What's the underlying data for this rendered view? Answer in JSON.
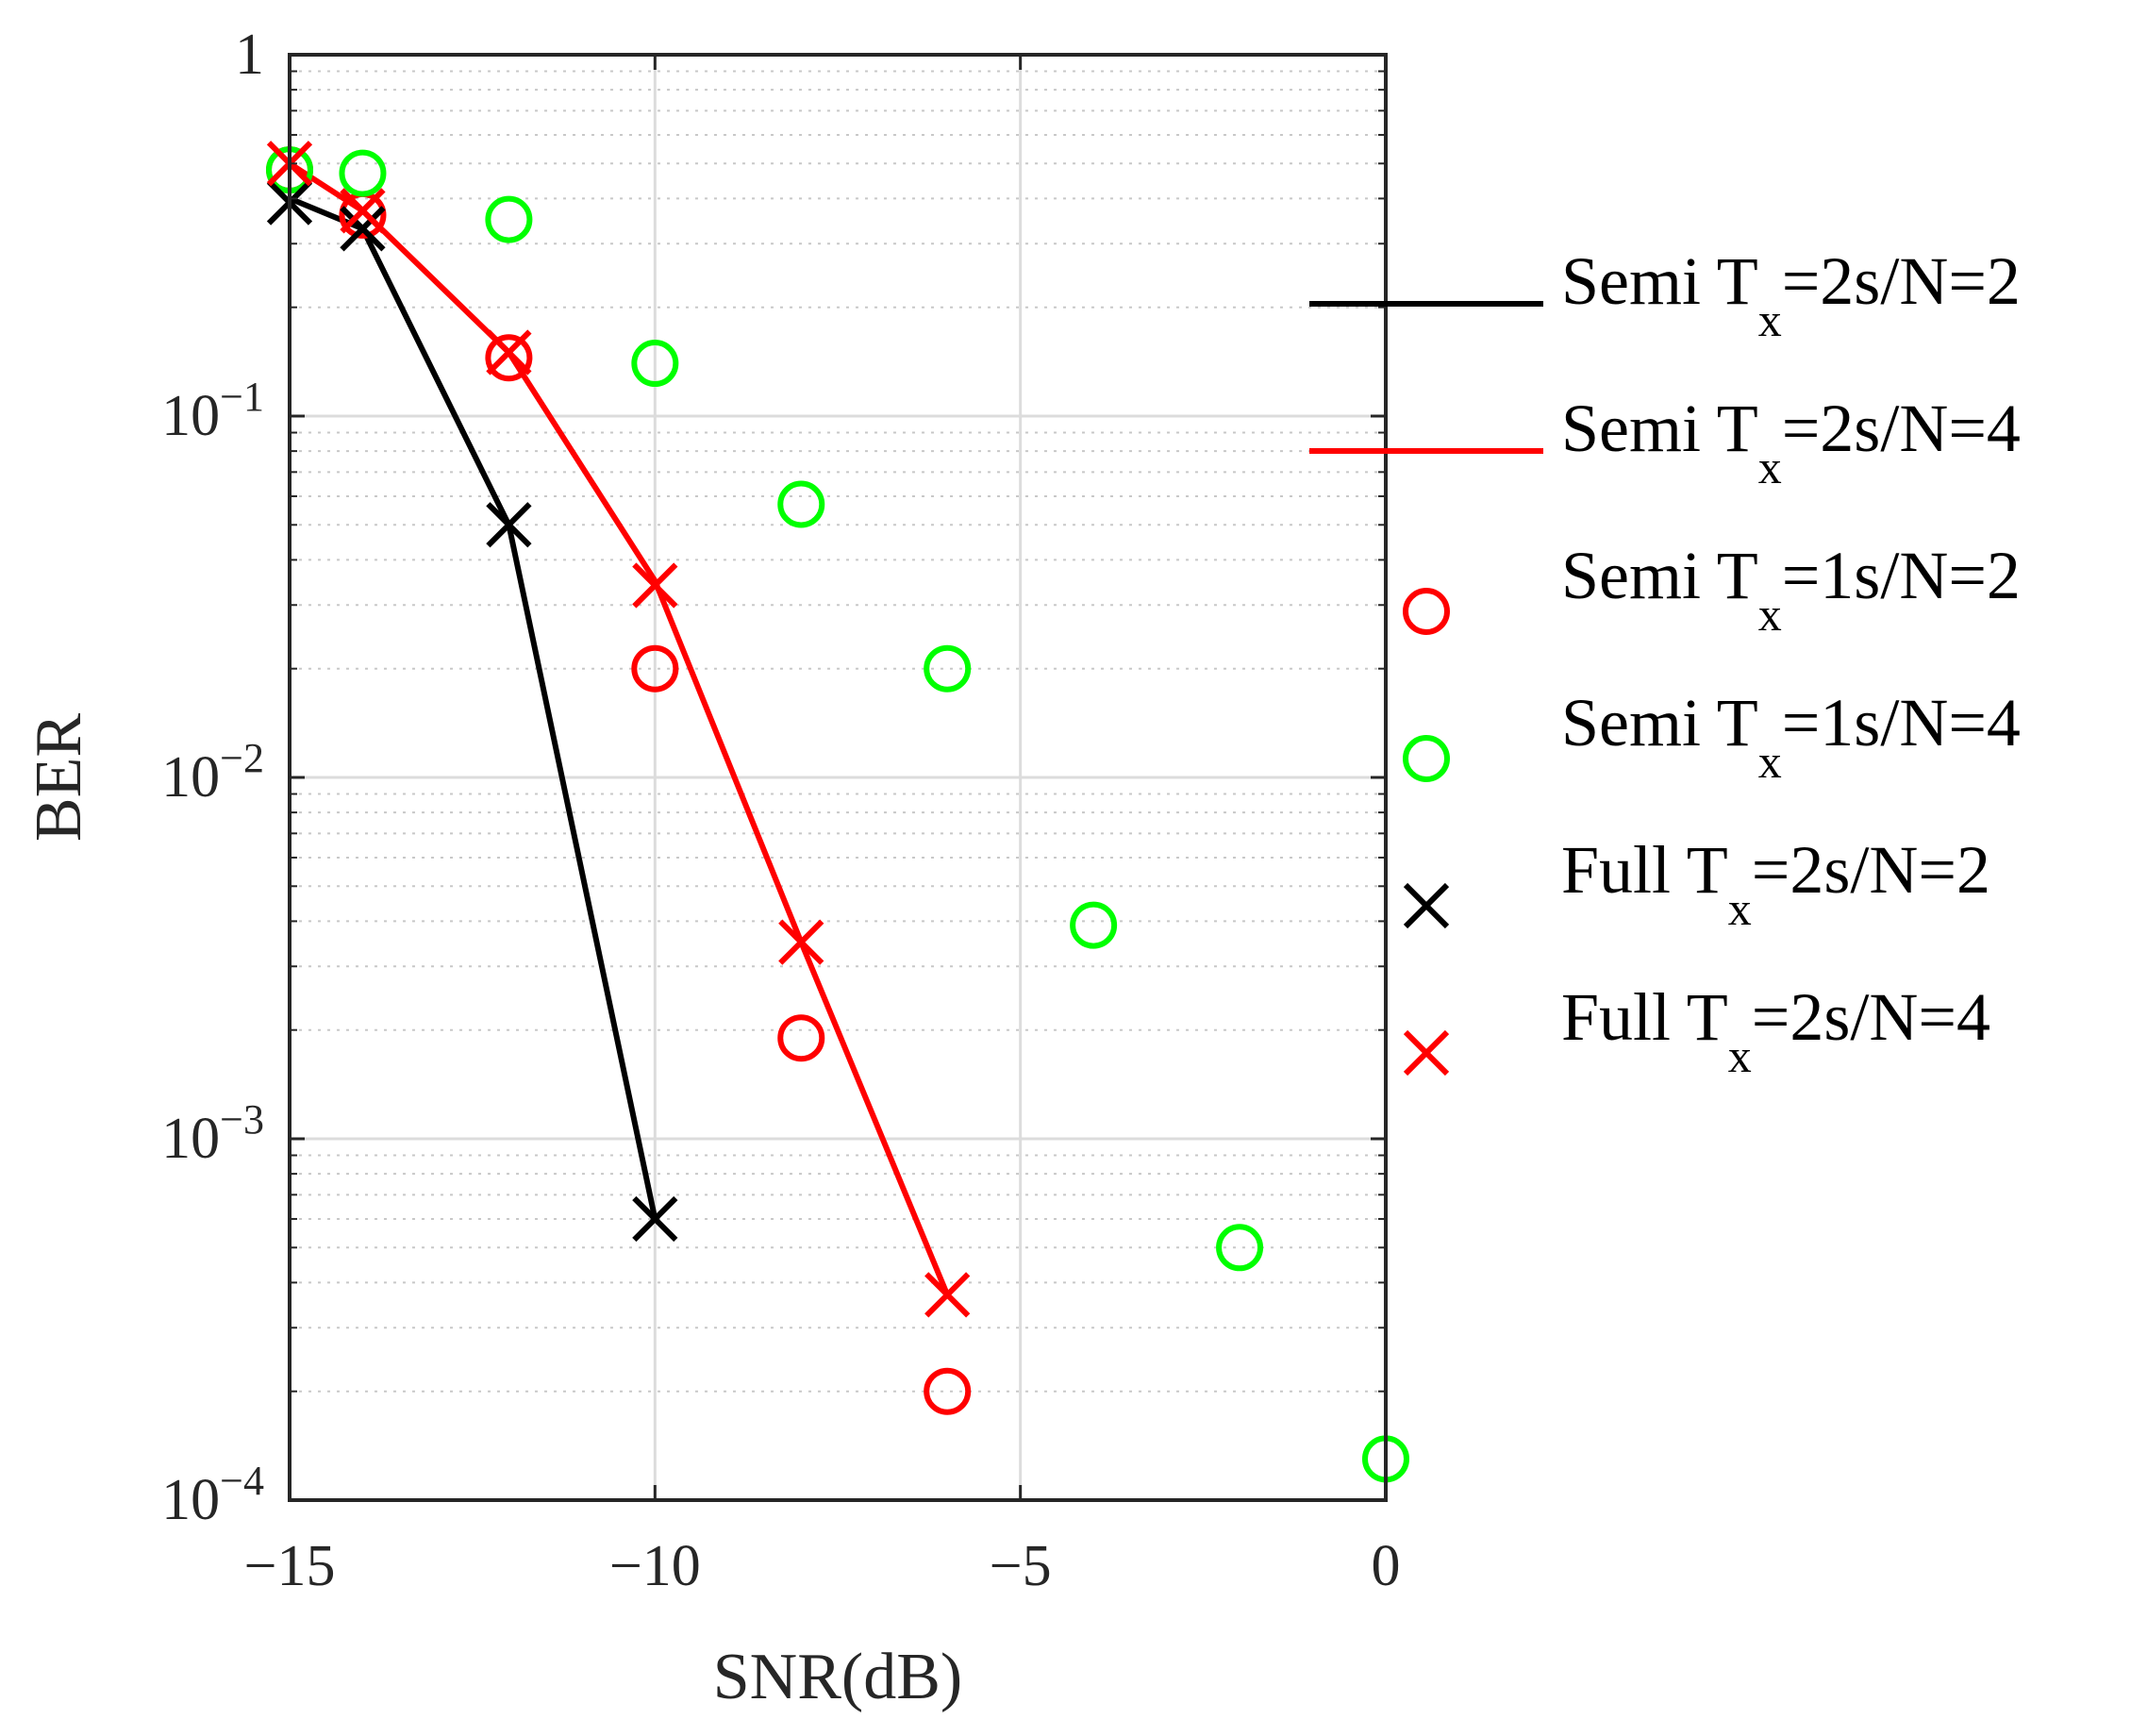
{
  "chart_data": {
    "type": "line",
    "title": "",
    "xlabel": "SNR(dB)",
    "ylabel": "BER",
    "xlim": [
      -15,
      0
    ],
    "ylim": [
      0.0001,
      1
    ],
    "yscale": "log",
    "grid": true,
    "legend_position": "right, outside",
    "x_ticks": [
      {
        "value": -15,
        "label": "−15"
      },
      {
        "value": -10,
        "label": "−10"
      },
      {
        "value": -5,
        "label": "−5"
      },
      {
        "value": 0,
        "label": "0"
      }
    ],
    "y_ticks": [
      {
        "value": 1,
        "base": "1",
        "exp": ""
      },
      {
        "value": 0.1,
        "base": "10",
        "exp": "−1"
      },
      {
        "value": 0.01,
        "base": "10",
        "exp": "−2"
      },
      {
        "value": 0.001,
        "base": "10",
        "exp": "−3"
      },
      {
        "value": 0.0001,
        "base": "10",
        "exp": "−4"
      }
    ],
    "series": [
      {
        "name_main": "Semi T",
        "name_sub": "x",
        "name_tail": "=2s/N=2",
        "style": "line",
        "color": "#000000",
        "x": [
          -15,
          -14,
          -12,
          -10
        ],
        "y": [
          0.4,
          0.33,
          0.05,
          0.0006
        ]
      },
      {
        "name_main": "Semi T",
        "name_sub": "x",
        "name_tail": "=2s/N=4",
        "style": "line",
        "color": "#ff0000",
        "x": [
          -15,
          -14,
          -12,
          -10,
          -8,
          -6
        ],
        "y": [
          0.5,
          0.37,
          0.15,
          0.035,
          0.0035,
          0.00037
        ]
      },
      {
        "name_main": "Semi T",
        "name_sub": "x",
        "name_tail": "=1s/N=2",
        "style": "circle",
        "color": "#ff0000",
        "x": [
          -15,
          -14,
          -12,
          -10,
          -8,
          -6
        ],
        "y": [
          0.48,
          0.36,
          0.145,
          0.02,
          0.0019,
          0.0002
        ]
      },
      {
        "name_main": "Semi T",
        "name_sub": "x",
        "name_tail": "=1s/N=4",
        "style": "circle",
        "color": "#00ff00",
        "x": [
          -15,
          -14,
          -12,
          -10,
          -8,
          -6,
          -4,
          -2,
          0
        ],
        "y": [
          0.48,
          0.47,
          0.35,
          0.14,
          0.057,
          0.02,
          0.0039,
          0.0005,
          0.00013
        ]
      },
      {
        "name_main": "Full T",
        "name_sub": "x",
        "name_tail": "=2s/N=2",
        "style": "cross",
        "color": "#000000",
        "x": [
          -15,
          -14,
          -12,
          -10
        ],
        "y": [
          0.39,
          0.33,
          0.05,
          0.0006
        ]
      },
      {
        "name_main": "Full T",
        "name_sub": "x",
        "name_tail": "=2s/N=4",
        "style": "cross",
        "color": "#ff0000",
        "x": [
          -15,
          -14,
          -12,
          -10,
          -8,
          -6
        ],
        "y": [
          0.5,
          0.37,
          0.15,
          0.034,
          0.0035,
          0.00037
        ]
      }
    ]
  }
}
